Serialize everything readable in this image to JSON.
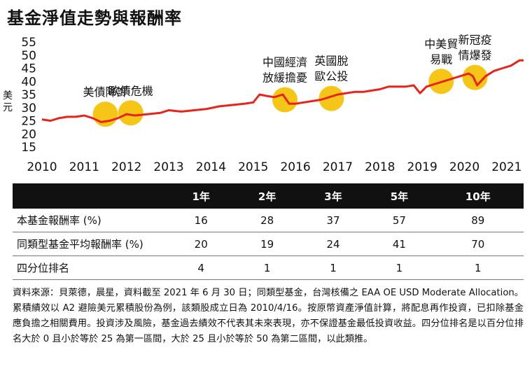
{
  "title": "基金淨值走勢與報酬率",
  "chart_data": {
    "type": "line",
    "ylabel": "美元",
    "ylim": [
      15,
      55
    ],
    "yticks": [
      15,
      20,
      25,
      30,
      35,
      40,
      45,
      50,
      55
    ],
    "xlim": [
      2010,
      2021.4
    ],
    "xticks": [
      2010,
      2011,
      2012,
      2013,
      2014,
      2015,
      2016,
      2017,
      2018,
      2019,
      2020,
      2021
    ],
    "line_color": "#e8231c",
    "marker_color": "#f5c518",
    "series": [
      {
        "x": [
          2010.0,
          2010.2,
          2010.4,
          2010.6,
          2010.8,
          2011.0,
          2011.2,
          2011.4,
          2011.6,
          2011.8,
          2012.0,
          2012.2,
          2012.5,
          2012.8,
          2013.0,
          2013.3,
          2013.6,
          2013.9,
          2014.2,
          2014.5,
          2014.8,
          2015.0,
          2015.15,
          2015.3,
          2015.5,
          2015.7,
          2015.85,
          2016.0,
          2016.2,
          2016.4,
          2016.6,
          2016.8,
          2017.0,
          2017.2,
          2017.4,
          2017.6,
          2017.8,
          2018.0,
          2018.2,
          2018.4,
          2018.6,
          2018.8,
          2018.95,
          2019.1,
          2019.3,
          2019.5,
          2019.7,
          2019.9,
          2020.1,
          2020.2,
          2020.3,
          2020.5,
          2020.7,
          2020.9,
          2021.1,
          2021.3,
          2021.4
        ],
        "y": [
          25.5,
          25,
          26,
          26.5,
          26.5,
          27,
          26,
          24.5,
          25,
          26,
          27.5,
          27,
          27.5,
          28,
          29,
          28.5,
          29,
          29.5,
          30.5,
          31,
          31.5,
          32,
          35,
          34.5,
          34,
          35,
          31.5,
          31.5,
          32,
          32.5,
          33,
          34,
          35,
          35.5,
          36,
          36,
          36.5,
          37,
          38,
          38,
          38,
          38.5,
          35.5,
          38,
          39,
          40,
          41,
          42,
          43,
          42,
          38.5,
          42,
          44,
          45,
          46,
          48,
          48
        ]
      }
    ],
    "annotations": [
      {
        "x": 2011.5,
        "y": 27.5,
        "label": "美債降評"
      },
      {
        "x": 2012.1,
        "y": 28,
        "label": "歐債危機"
      },
      {
        "x": 2015.75,
        "y": 33,
        "label": "中國經濟放緩擔憂"
      },
      {
        "x": 2016.85,
        "y": 33.5,
        "label": "英國脫歐公投"
      },
      {
        "x": 2019.45,
        "y": 40,
        "label": "中美貿易戰"
      },
      {
        "x": 2020.25,
        "y": 41.5,
        "label": "新冠疫情爆發"
      }
    ]
  },
  "table": {
    "headers": [
      "",
      "1年",
      "2年",
      "3年",
      "5年",
      "10年"
    ],
    "rows": [
      {
        "label": "本基金報酬率 (%)",
        "values": [
          "16",
          "28",
          "37",
          "57",
          "89"
        ]
      },
      {
        "label": "同類型基金平均報酬率 (%)",
        "values": [
          "20",
          "19",
          "24",
          "41",
          "70"
        ]
      },
      {
        "label": "四分位排名",
        "values": [
          "4",
          "1",
          "1",
          "1",
          "1"
        ]
      }
    ]
  },
  "note": "資料來源：貝萊德，晨星，資料截至 2021 年 6 月 30 日；同類型基金，台灣核備之 EAA OE USD Moderate Allocation。累積績效以 A2 避險美元累積股份為例，該類股成立日為 2010/4/16。按原幣資產淨值計算，將配息再作投資，已扣除基金應負擔之相關費用。投資涉及風險，基金過去績效不代表其未來表現，亦不保證基金最低投資收益。四分位排名是以百分位排名大於 0 且小於等於 25 為第一區間，大於 25 且小於等於 50 為第二區間，以此類推。"
}
